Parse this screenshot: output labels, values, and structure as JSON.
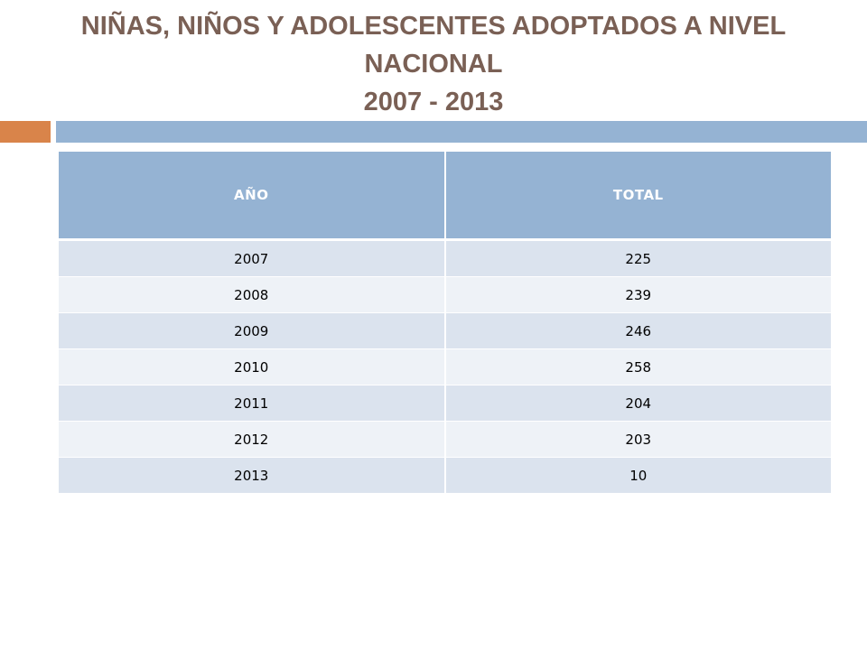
{
  "title": {
    "line1": "NIÑAS, NIÑOS Y ADOLESCENTES ADOPTADOS A NIVEL",
    "line2": "NACIONAL",
    "line3": "2007 - 2013"
  },
  "table": {
    "headers": [
      "AÑO",
      "TOTAL"
    ],
    "rows": [
      [
        "2007",
        "225"
      ],
      [
        "2008",
        "239"
      ],
      [
        "2009",
        "246"
      ],
      [
        "2010",
        "258"
      ],
      [
        "2011",
        "204"
      ],
      [
        "2012",
        "203"
      ],
      [
        "2013",
        "10"
      ]
    ]
  },
  "colors": {
    "title": "#7a6055",
    "accent": "#d9844a",
    "header_bg": "#95b3d3",
    "row_odd": "#dbe3ee",
    "row_even": "#eef2f7"
  }
}
